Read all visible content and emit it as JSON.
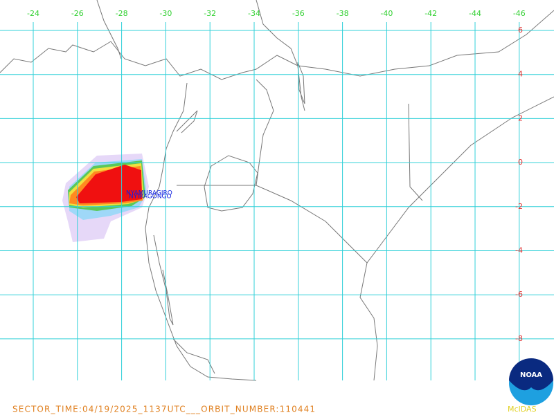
{
  "map": {
    "lon_labels": [
      -24,
      -26,
      -28,
      -30,
      -32,
      -34,
      -36,
      -38,
      -40,
      -42,
      -44,
      -46
    ],
    "lat_labels": [
      6,
      4,
      2,
      0,
      -2,
      -4,
      -6,
      -8
    ],
    "volcanoes": [
      "NYAMURAGIRO",
      "NYIRAGONGO"
    ],
    "footer": "SECTOR_TIME:04/19/2025_1137UTC___ORBIT_NUMBER:110441",
    "credit": "McIDAS",
    "logo": "NOAA"
  }
}
